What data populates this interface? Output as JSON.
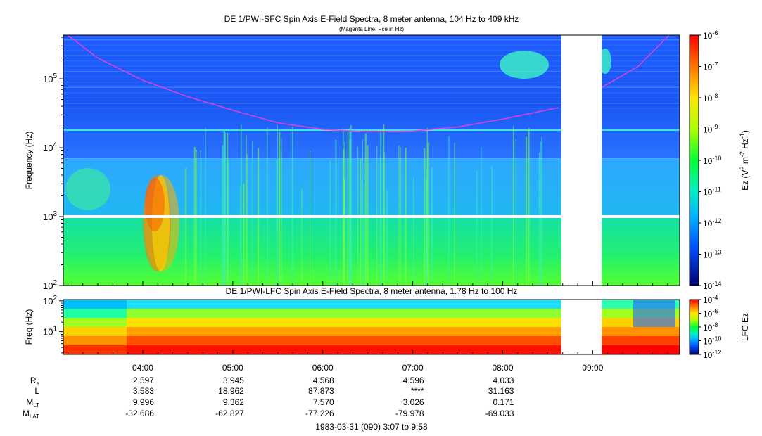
{
  "chart_data": [
    {
      "type": "heatmap",
      "title": "DE 1/PWI-SFC  Spin Axis E-Field Spectra, 8 meter antenna, 104 Hz to 409 kHz",
      "subtitle": "(Magenta Line: Fce in Hz)",
      "ylabel": "Frequency (Hz)",
      "yscale": "log",
      "ylim": [
        100,
        430000
      ],
      "yticks": [
        {
          "value": 100,
          "base": "10",
          "exp": "2"
        },
        {
          "value": 1000,
          "base": "10",
          "exp": "3"
        },
        {
          "value": 10000,
          "base": "10",
          "exp": "4"
        },
        {
          "value": 100000,
          "base": "10",
          "exp": "5"
        }
      ],
      "colorbar": {
        "label": "Ez (V",
        "label_full": "Ez (V2 m-2 Hz-1)",
        "scale": "log",
        "range": [
          1e-14,
          1e-06
        ],
        "ticks": [
          {
            "value": 1e-06,
            "base": "10",
            "exp": "-6"
          },
          {
            "value": 1e-07,
            "base": "10",
            "exp": "-7"
          },
          {
            "value": 1e-08,
            "base": "10",
            "exp": "-8"
          },
          {
            "value": 1e-09,
            "base": "10",
            "exp": "-9"
          },
          {
            "value": 1e-10,
            "base": "10",
            "exp": "-10"
          },
          {
            "value": 1e-11,
            "base": "10",
            "exp": "-11"
          },
          {
            "value": 1e-12,
            "base": "10",
            "exp": "-12"
          },
          {
            "value": 1e-13,
            "base": "10",
            "exp": "-13"
          },
          {
            "value": 1e-14,
            "base": "10",
            "exp": "-14"
          }
        ]
      },
      "data_gaps_utc": [
        [
          "08:39",
          "09:06"
        ]
      ],
      "fce_line": {
        "color": "#e040e0",
        "x": [
          "03:10",
          "03:30",
          "04:00",
          "04:30",
          "05:00",
          "05:30",
          "06:00",
          "06:30",
          "07:00",
          "07:30",
          "08:00",
          "08:37",
          "09:06",
          "09:30",
          "09:51"
        ],
        "y": [
          430000,
          200000,
          95000,
          55000,
          35000,
          23000,
          18500,
          17000,
          17500,
          20000,
          26000,
          38000,
          75000,
          150000,
          430000
        ]
      }
    },
    {
      "type": "heatmap",
      "title": "DE 1/PWI-LFC  Spin Axis E-Field Spectra, 8 meter antenna, 1.78 Hz to 100 Hz",
      "ylabel": "Freq (Hz)",
      "yscale": "log",
      "ylim": [
        1.78,
        110
      ],
      "yticks": [
        {
          "value": 10,
          "base": "10",
          "exp": "1"
        },
        {
          "value": 100,
          "base": "10",
          "exp": "2"
        }
      ],
      "colorbar": {
        "label": "LFC Ez",
        "scale": "log",
        "range": [
          1e-12,
          0.0001
        ],
        "ticks": [
          {
            "value": 0.0001,
            "base": "10",
            "exp": "-4"
          },
          {
            "value": 1e-06,
            "base": "10",
            "exp": "-6"
          },
          {
            "value": 1e-08,
            "base": "10",
            "exp": "-8"
          },
          {
            "value": 1e-10,
            "base": "10",
            "exp": "-10"
          },
          {
            "value": 1e-12,
            "base": "10",
            "exp": "-12"
          }
        ]
      },
      "data_gaps_utc": [
        [
          "08:39",
          "09:06"
        ]
      ]
    }
  ],
  "xaxis": {
    "range": [
      "03:07",
      "09:58"
    ],
    "ticks": [
      "04:00",
      "05:00",
      "06:00",
      "07:00",
      "08:00",
      "09:00"
    ]
  },
  "ephemeris": {
    "rows": [
      {
        "label": "R",
        "sub": "e",
        "values": [
          "2.597",
          "3.945",
          "4.568",
          "4.596",
          "4.033"
        ]
      },
      {
        "label": "L",
        "sub": "",
        "values": [
          "3.583",
          "18.962",
          "87.873",
          "****",
          "31.163"
        ]
      },
      {
        "label": "M",
        "sub": "LT",
        "values": [
          "9.996",
          "9.362",
          "7.570",
          "3.026",
          "0.171"
        ]
      },
      {
        "label": "M",
        "sub": "LAT",
        "values": [
          "-32.686",
          "-62.827",
          "-77.226",
          "-79.978",
          "-69.033"
        ]
      }
    ]
  },
  "footer": "1983-03-31 (090) 3:07 to 9:58"
}
